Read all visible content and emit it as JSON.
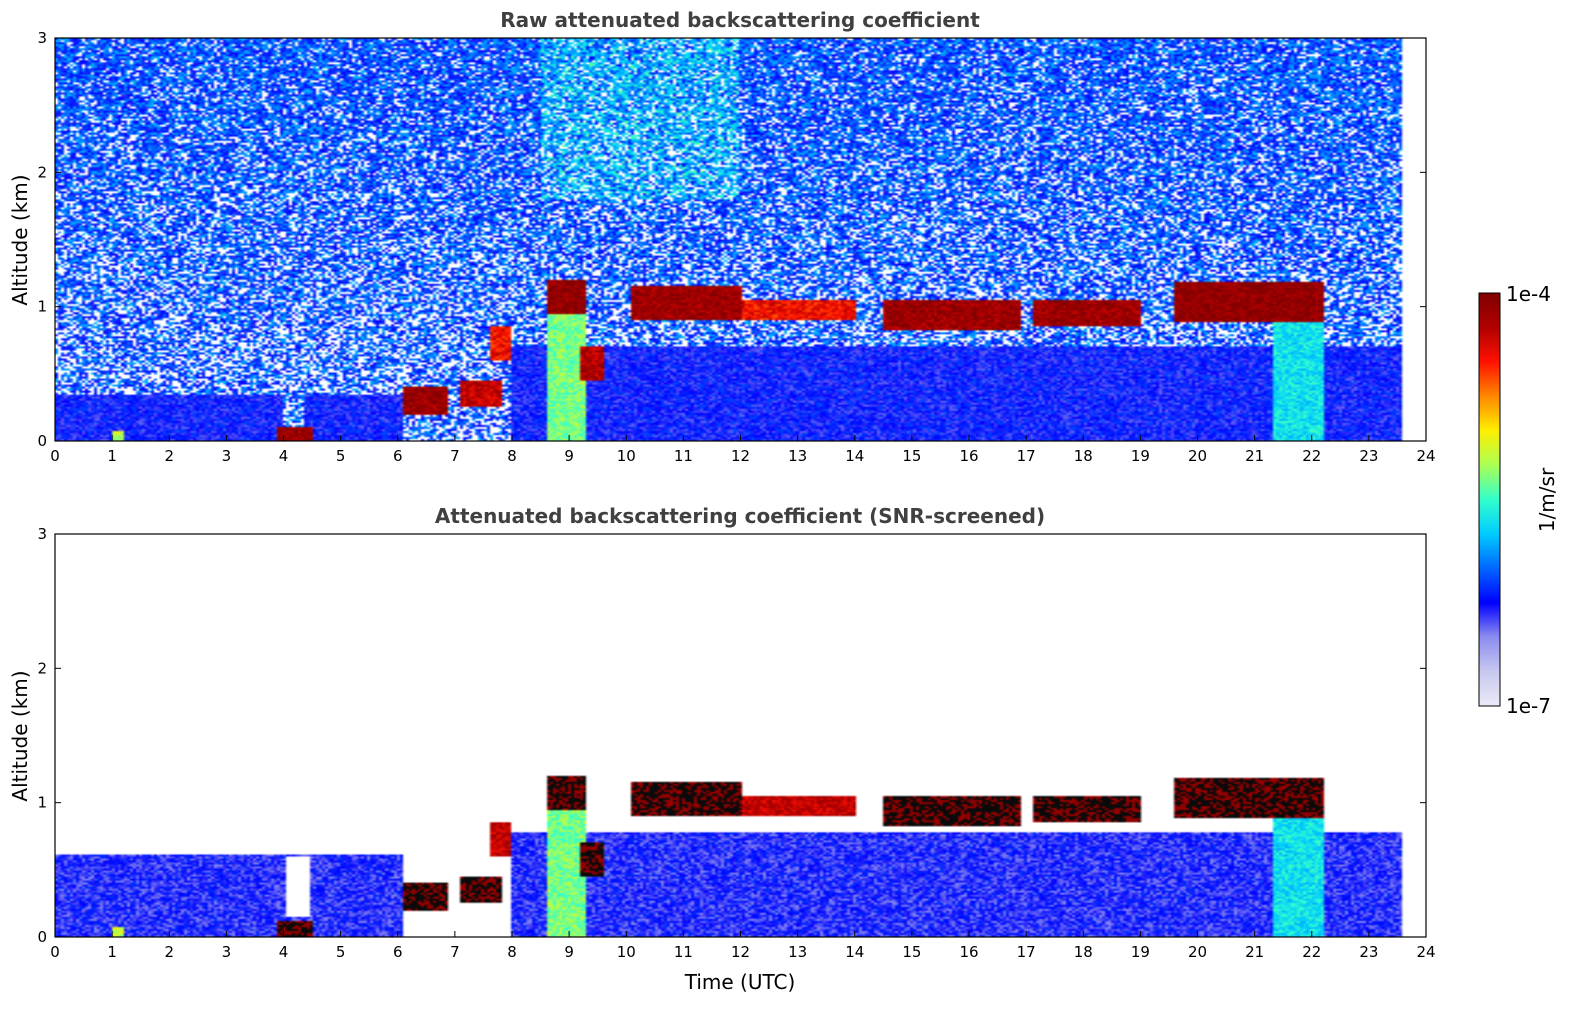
{
  "chart_data": [
    {
      "type": "heatmap",
      "title": "Raw attenuated backscattering coefficient",
      "xlabel": "",
      "ylabel": "Altitude (km)",
      "xlim": [
        0,
        24
      ],
      "ylim": [
        0,
        3
      ],
      "xticks": [
        "0",
        "1",
        "2",
        "3",
        "4",
        "5",
        "6",
        "7",
        "8",
        "9",
        "10",
        "11",
        "12",
        "13",
        "14",
        "15",
        "16",
        "17",
        "18",
        "19",
        "20",
        "21",
        "22",
        "23",
        "24"
      ],
      "yticks": [
        "0",
        "1",
        "2",
        "3"
      ],
      "data_end_time": 23.6,
      "noise": "high",
      "cloud_features": [
        {
          "t0": 0.0,
          "t1": 6.1,
          "alt0": 0.0,
          "alt1": 0.35,
          "level": 0.25
        },
        {
          "t0": 1.0,
          "t1": 1.2,
          "alt0": 0.0,
          "alt1": 0.08,
          "level": 0.6
        },
        {
          "t0": 3.9,
          "t1": 4.5,
          "alt0": 0.0,
          "alt1": 0.1,
          "level": 0.95
        },
        {
          "t0": 6.1,
          "t1": 6.9,
          "alt0": 0.2,
          "alt1": 0.4,
          "level": 0.95
        },
        {
          "t0": 7.1,
          "t1": 7.8,
          "alt0": 0.25,
          "alt1": 0.45,
          "level": 0.9
        },
        {
          "t0": 7.6,
          "t1": 8.0,
          "alt0": 0.6,
          "alt1": 0.85,
          "level": 0.85
        },
        {
          "t0": 8.6,
          "t1": 9.3,
          "alt0": 0.0,
          "alt1": 1.2,
          "level": 0.55
        },
        {
          "t0": 8.6,
          "t1": 9.3,
          "alt0": 0.95,
          "alt1": 1.2,
          "level": 0.97
        },
        {
          "t0": 9.2,
          "t1": 9.6,
          "alt0": 0.45,
          "alt1": 0.7,
          "level": 0.92
        },
        {
          "t0": 10.1,
          "t1": 12.0,
          "alt0": 0.9,
          "alt1": 1.15,
          "level": 0.95
        },
        {
          "t0": 12.0,
          "t1": 14.0,
          "alt0": 0.9,
          "alt1": 1.05,
          "level": 0.85
        },
        {
          "t0": 14.5,
          "t1": 16.9,
          "alt0": 0.82,
          "alt1": 1.05,
          "level": 0.95
        },
        {
          "t0": 17.1,
          "t1": 19.0,
          "alt0": 0.85,
          "alt1": 1.05,
          "level": 0.95
        },
        {
          "t0": 19.6,
          "t1": 22.2,
          "alt0": 0.88,
          "alt1": 1.18,
          "level": 0.97
        },
        {
          "t0": 21.3,
          "t1": 22.2,
          "alt0": 0.0,
          "alt1": 0.9,
          "level": 0.45
        },
        {
          "t0": 8.0,
          "t1": 23.6,
          "alt0": 0.0,
          "alt1": 0.7,
          "level": 0.25
        }
      ],
      "missing_bands": [
        [
          4.0,
          4.35,
          0.1,
          3.0
        ],
        [
          6.1,
          7.0,
          0.4,
          1.2
        ]
      ]
    },
    {
      "type": "heatmap",
      "title": "Attenuated backscattering coefficient (SNR-screened)",
      "xlabel": "Time (UTC)",
      "ylabel": "Altitude (km)",
      "xlim": [
        0,
        24
      ],
      "ylim": [
        0,
        3
      ],
      "xticks": [
        "0",
        "1",
        "2",
        "3",
        "4",
        "5",
        "6",
        "7",
        "8",
        "9",
        "10",
        "11",
        "12",
        "13",
        "14",
        "15",
        "16",
        "17",
        "18",
        "19",
        "20",
        "21",
        "22",
        "23",
        "24"
      ],
      "yticks": [
        "0",
        "1",
        "2",
        "3"
      ],
      "data_end_time": 23.6,
      "noise": "low",
      "cloud_features": [
        {
          "t0": 0.0,
          "t1": 6.1,
          "alt0": 0.0,
          "alt1": 0.62,
          "level": 0.23
        },
        {
          "t0": 1.0,
          "t1": 1.2,
          "alt0": 0.0,
          "alt1": 0.08,
          "level": 0.6
        },
        {
          "t0": 3.9,
          "t1": 4.5,
          "alt0": 0.0,
          "alt1": 0.12,
          "level": 1.0
        },
        {
          "t0": 6.1,
          "t1": 6.9,
          "alt0": 0.2,
          "alt1": 0.4,
          "level": 1.0
        },
        {
          "t0": 7.1,
          "t1": 7.8,
          "alt0": 0.25,
          "alt1": 0.45,
          "level": 1.0
        },
        {
          "t0": 7.6,
          "t1": 8.0,
          "alt0": 0.6,
          "alt1": 0.85,
          "level": 0.9
        },
        {
          "t0": 8.6,
          "t1": 9.3,
          "alt0": 0.0,
          "alt1": 1.2,
          "level": 0.55
        },
        {
          "t0": 8.6,
          "t1": 9.3,
          "alt0": 0.95,
          "alt1": 1.2,
          "level": 1.0
        },
        {
          "t0": 9.2,
          "t1": 9.6,
          "alt0": 0.45,
          "alt1": 0.7,
          "level": 1.0
        },
        {
          "t0": 10.1,
          "t1": 12.0,
          "alt0": 0.9,
          "alt1": 1.15,
          "level": 1.0
        },
        {
          "t0": 12.0,
          "t1": 14.0,
          "alt0": 0.9,
          "alt1": 1.05,
          "level": 0.9
        },
        {
          "t0": 14.5,
          "t1": 16.9,
          "alt0": 0.82,
          "alt1": 1.05,
          "level": 1.0
        },
        {
          "t0": 17.1,
          "t1": 19.0,
          "alt0": 0.85,
          "alt1": 1.05,
          "level": 1.0
        },
        {
          "t0": 19.6,
          "t1": 22.2,
          "alt0": 0.88,
          "alt1": 1.18,
          "level": 1.0
        },
        {
          "t0": 21.3,
          "t1": 22.2,
          "alt0": 0.0,
          "alt1": 0.9,
          "level": 0.45
        },
        {
          "t0": 8.0,
          "t1": 23.6,
          "alt0": 0.0,
          "alt1": 0.78,
          "level": 0.23
        }
      ],
      "missing_bands": [
        [
          4.05,
          4.45,
          0.15,
          0.6
        ]
      ]
    }
  ],
  "colorbar": {
    "label": "1/m/sr",
    "max_label": "1e-4",
    "min_label": "1e-7",
    "colormap": [
      "#eaeaf8",
      "#c8c8f0",
      "#8c8cf0",
      "#0000ff",
      "#0066ff",
      "#00ccff",
      "#33ffcc",
      "#aaff55",
      "#ffee00",
      "#ff8800",
      "#ff1100",
      "#b00000",
      "#800000"
    ]
  }
}
